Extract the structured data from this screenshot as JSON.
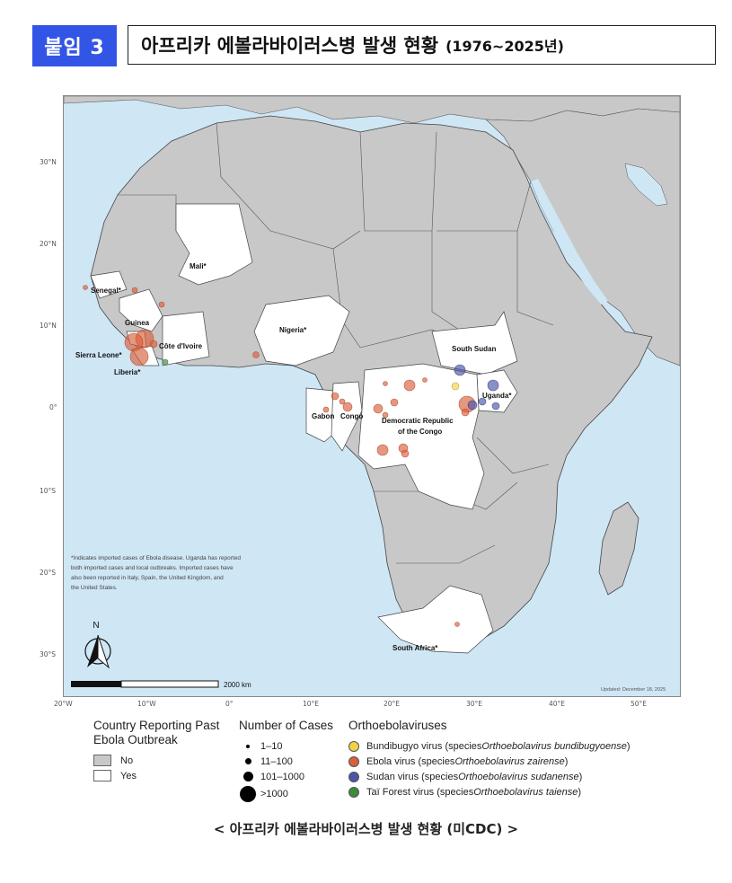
{
  "header": {
    "tag": "붙임 3",
    "title": "아프리카 에볼라바이러스병 발생 현황",
    "subtitle": "(1976~2025년)"
  },
  "map": {
    "lat_labels": [
      "30°N",
      "20°N",
      "10°N",
      "0°",
      "10°S",
      "20°S",
      "30°S"
    ],
    "lon_labels": [
      "20°W",
      "10°W",
      "0°",
      "10°E",
      "20°E",
      "30°E",
      "40°E",
      "50°E"
    ],
    "country_labels": {
      "mali": "Mali*",
      "senegal": "Senegal*",
      "guinea": "Guinea",
      "sierra_leone": "Sierra Leone*",
      "liberia": "Liberia*",
      "cote_divoire": "Côte d'Ivoire",
      "nigeria": "Nigeria*",
      "south_sudan": "South Sudan",
      "uganda": "Uganda*",
      "gabon": "Gabon",
      "congo": "Congo",
      "drc_line1": "Democratic Republic",
      "drc_line2": "of the Congo",
      "south_africa": "South Africa*"
    },
    "footnote": [
      "*Indicates imported cases of Ebola disease. Uganda has reported",
      "both imported cases and local outbreaks. Imported cases have",
      "also been reported in Italy, Spain, the United Kingdom, and",
      "the United States."
    ],
    "north_label": "N",
    "scale_label": "2000 km",
    "updated": "Updated: December 18, 2025",
    "colors": {
      "ocean": "#cfe6f5",
      "no_outbreak": "#c8c8c8",
      "yes_outbreak": "#ffffff",
      "border": "#444444",
      "bundibugyo": "#f0d24a",
      "ebola": "#d9603a",
      "sudan": "#4a55a8",
      "tai_forest": "#3d8a3d"
    }
  },
  "legend": {
    "country": {
      "title_line1": "Country Reporting Past",
      "title_line2": "Ebola Outbreak",
      "items": [
        "No",
        "Yes"
      ]
    },
    "cases": {
      "title": "Number of Cases",
      "items": [
        "1–10",
        "11–100",
        "101–1000",
        ">1000"
      ]
    },
    "viruses": {
      "title": "Orthoebolaviruses",
      "items": [
        {
          "name": "Bundibugyo virus (species ",
          "species": "Orthoebolavirus bundibugyoense",
          "end": ")"
        },
        {
          "name": "Ebola virus (species ",
          "species": "Orthoebolavirus zairense",
          "end": ")"
        },
        {
          "name": "Sudan virus (species ",
          "species": "Orthoebolavirus sudanense",
          "end": ")"
        },
        {
          "name": "Taï Forest virus (species ",
          "species": "Orthoebolavirus taiense",
          "end": ")"
        }
      ]
    }
  },
  "caption": "< 아프리카 에볼라바이러스병 발생 현황 (미CDC) >"
}
